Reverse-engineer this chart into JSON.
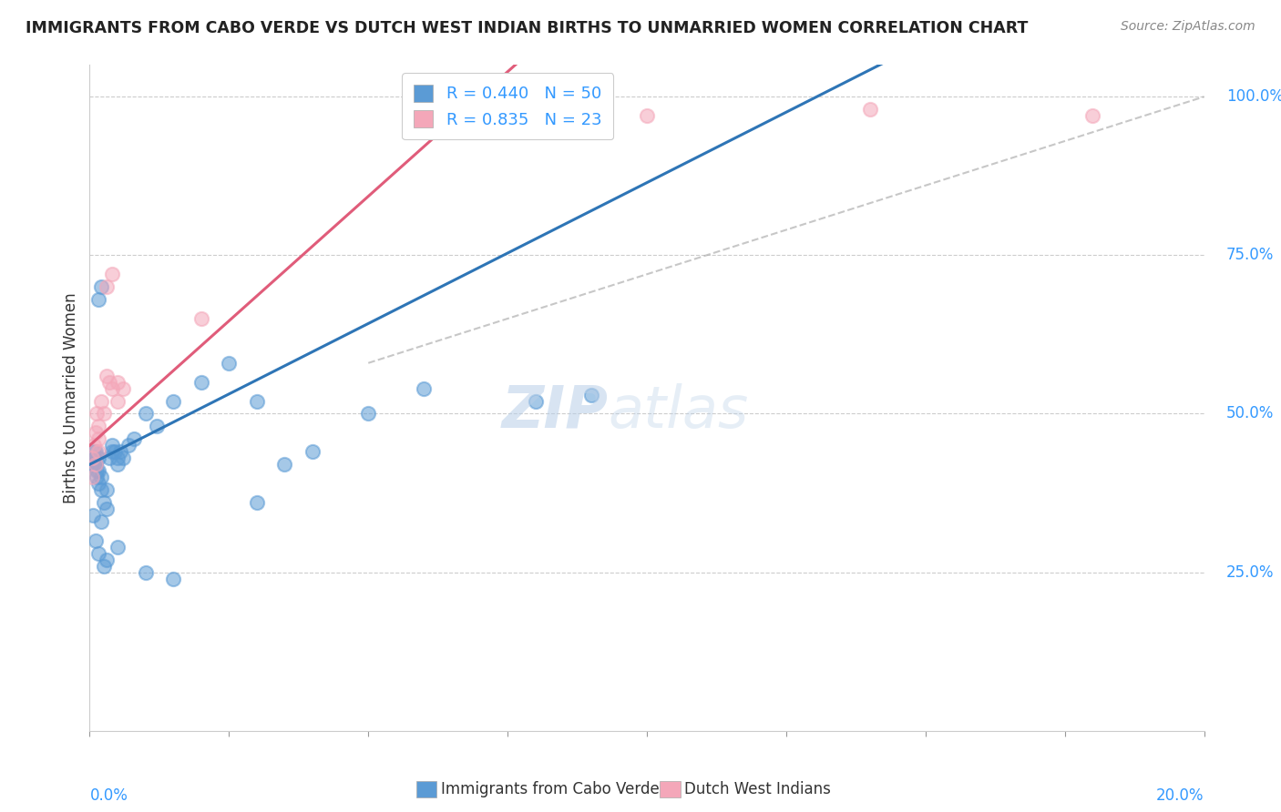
{
  "title": "IMMIGRANTS FROM CABO VERDE VS DUTCH WEST INDIAN BIRTHS TO UNMARRIED WOMEN CORRELATION CHART",
  "source": "Source: ZipAtlas.com",
  "ylabel": "Births to Unmarried Women",
  "xmin": 0.0,
  "xmax": 20.0,
  "ymin": 0.0,
  "ymax": 105.0,
  "blue_R": 0.44,
  "blue_N": 50,
  "pink_R": 0.835,
  "pink_N": 23,
  "series_label_blue": "Immigrants from Cabo Verde",
  "series_label_pink": "Dutch West Indians",
  "watermark_zip": "ZIP",
  "watermark_atlas": "atlas",
  "blue_color": "#5b9bd5",
  "blue_line_color": "#2e75b6",
  "pink_color": "#f4a7b9",
  "pink_line_color": "#e05c7a",
  "dash_color": "#b0b0b0",
  "blue_scatter": [
    [
      0.05,
      42
    ],
    [
      0.07,
      44
    ],
    [
      0.08,
      43
    ],
    [
      0.09,
      42
    ],
    [
      0.1,
      44
    ],
    [
      0.1,
      42
    ],
    [
      0.12,
      41
    ],
    [
      0.13,
      40
    ],
    [
      0.15,
      43
    ],
    [
      0.15,
      41
    ],
    [
      0.15,
      39
    ],
    [
      0.2,
      40
    ],
    [
      0.2,
      38
    ],
    [
      0.25,
      36
    ],
    [
      0.3,
      35
    ],
    [
      0.3,
      38
    ],
    [
      0.35,
      43
    ],
    [
      0.4,
      44
    ],
    [
      0.4,
      45
    ],
    [
      0.45,
      44
    ],
    [
      0.5,
      43
    ],
    [
      0.5,
      42
    ],
    [
      0.55,
      44
    ],
    [
      0.6,
      43
    ],
    [
      0.7,
      45
    ],
    [
      0.8,
      46
    ],
    [
      1.0,
      50
    ],
    [
      1.2,
      48
    ],
    [
      1.5,
      52
    ],
    [
      2.0,
      55
    ],
    [
      2.5,
      58
    ],
    [
      3.0,
      52
    ],
    [
      3.5,
      42
    ],
    [
      4.0,
      44
    ],
    [
      5.0,
      50
    ],
    [
      6.0,
      54
    ],
    [
      8.0,
      52
    ],
    [
      9.0,
      53
    ],
    [
      0.15,
      68
    ],
    [
      0.2,
      70
    ],
    [
      0.06,
      34
    ],
    [
      0.1,
      30
    ],
    [
      0.15,
      28
    ],
    [
      0.2,
      33
    ],
    [
      0.25,
      26
    ],
    [
      0.3,
      27
    ],
    [
      0.5,
      29
    ],
    [
      1.0,
      25
    ],
    [
      1.5,
      24
    ],
    [
      3.0,
      36
    ]
  ],
  "pink_scatter": [
    [
      0.05,
      43
    ],
    [
      0.07,
      45
    ],
    [
      0.1,
      47
    ],
    [
      0.12,
      50
    ],
    [
      0.15,
      46
    ],
    [
      0.15,
      48
    ],
    [
      0.2,
      52
    ],
    [
      0.25,
      50
    ],
    [
      0.3,
      56
    ],
    [
      0.35,
      55
    ],
    [
      0.4,
      54
    ],
    [
      0.5,
      52
    ],
    [
      0.5,
      55
    ],
    [
      0.6,
      54
    ],
    [
      0.05,
      40
    ],
    [
      0.1,
      42
    ],
    [
      0.15,
      44
    ],
    [
      0.3,
      70
    ],
    [
      0.4,
      72
    ],
    [
      2.0,
      65
    ],
    [
      10.0,
      97
    ],
    [
      14.0,
      98
    ],
    [
      18.0,
      97
    ]
  ],
  "blue_line_x0": 0.0,
  "blue_line_y0": 42.0,
  "blue_line_x1": 9.0,
  "blue_line_y1": 82.0,
  "pink_line_x0": 0.0,
  "pink_line_y0": 45.0,
  "pink_line_x1": 7.0,
  "pink_line_y1": 100.0,
  "dash_line_x0": 5.0,
  "dash_line_y0": 58.0,
  "dash_line_x1": 20.0,
  "dash_line_y1": 100.0
}
